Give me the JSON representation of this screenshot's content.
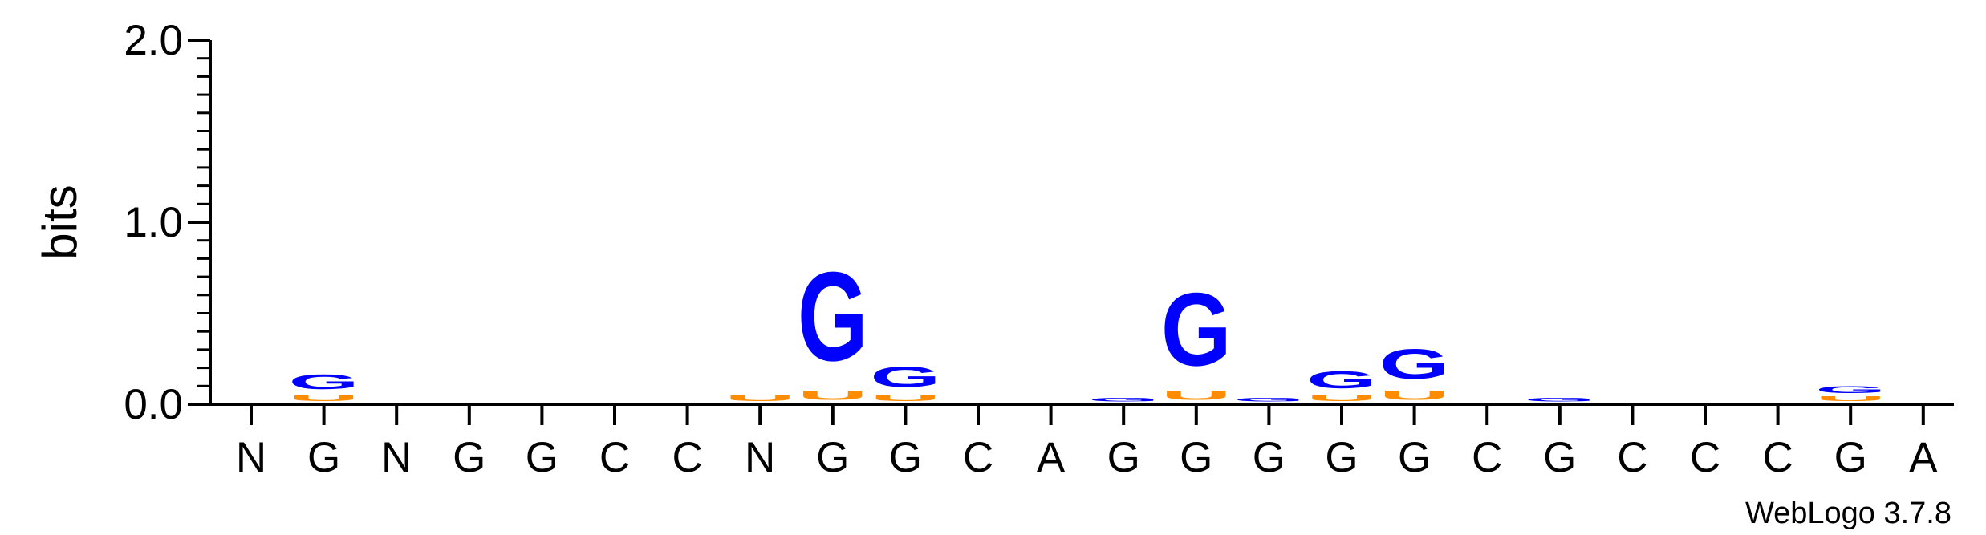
{
  "chart_data": {
    "type": "sequence-logo",
    "ylabel": "bits",
    "ylim": [
      0,
      2.0
    ],
    "y_ticks": [
      "0.0",
      "1.0",
      "2.0"
    ],
    "credit": "WebLogo 3.7.8",
    "colors": {
      "G": "#0000ff",
      "U": "#ff8c00",
      "A": "#0000ff",
      "C": "#0000ff"
    },
    "positions": [
      "N",
      "G",
      "N",
      "G",
      "G",
      "C",
      "C",
      "N",
      "G",
      "G",
      "C",
      "A",
      "G",
      "G",
      "G",
      "G",
      "G",
      "C",
      "G",
      "C",
      "C",
      "C",
      "G",
      "A"
    ],
    "stacks": [
      [],
      [
        {
          "letter": "U",
          "bits": 0.05
        },
        {
          "letter": "G",
          "bits": 0.13
        }
      ],
      [],
      [],
      [],
      [],
      [],
      [
        {
          "letter": "U",
          "bits": 0.05
        }
      ],
      [
        {
          "letter": "U",
          "bits": 0.08
        },
        {
          "letter": "G",
          "bits": 0.78
        }
      ],
      [
        {
          "letter": "U",
          "bits": 0.05
        },
        {
          "letter": "G",
          "bits": 0.18
        }
      ],
      [],
      [],
      [
        {
          "letter": "G",
          "bits": 0.03
        }
      ],
      [
        {
          "letter": "U",
          "bits": 0.08
        },
        {
          "letter": "G",
          "bits": 0.64
        }
      ],
      [
        {
          "letter": "G",
          "bits": 0.03
        }
      ],
      [
        {
          "letter": "U",
          "bits": 0.05
        },
        {
          "letter": "G",
          "bits": 0.15
        }
      ],
      [
        {
          "letter": "U",
          "bits": 0.08
        },
        {
          "letter": "G",
          "bits": 0.26
        }
      ],
      [],
      [
        {
          "letter": "G",
          "bits": 0.03
        }
      ],
      [],
      [],
      [],
      [
        {
          "letter": "U",
          "bits": 0.04
        },
        {
          "letter": "G",
          "bits": 0.06
        }
      ],
      []
    ]
  }
}
